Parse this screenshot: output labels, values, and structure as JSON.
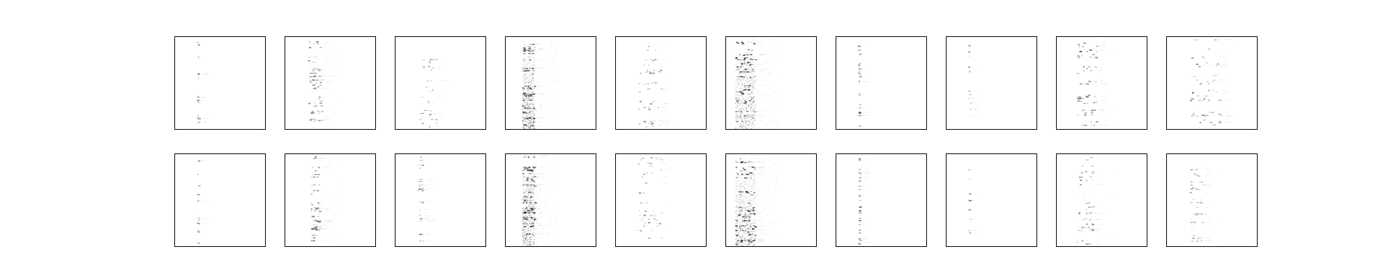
{
  "chart_data": {
    "type": "heatmap",
    "title": "",
    "layout": {
      "rows": 2,
      "cols": 10
    },
    "colormap": "gray_r",
    "axes": "off",
    "panels": [
      {
        "row": 0,
        "col": 0,
        "band": [
          0.24,
          0.26
        ],
        "rows_active": 0.45,
        "density": 0.35,
        "noise": 0.0
      },
      {
        "row": 0,
        "col": 1,
        "band": [
          0.25,
          0.4
        ],
        "rows_active": 0.85,
        "density": 0.55,
        "noise": 0.02
      },
      {
        "row": 0,
        "col": 2,
        "band": [
          0.25,
          0.45
        ],
        "rows_active": 0.55,
        "density": 0.45,
        "noise": 0.0
      },
      {
        "row": 0,
        "col": 3,
        "band": [
          0.18,
          0.32
        ],
        "rows_active": 1.0,
        "density": 0.9,
        "noise": 0.12
      },
      {
        "row": 0,
        "col": 4,
        "band": [
          0.24,
          0.5
        ],
        "rows_active": 0.65,
        "density": 0.5,
        "noise": 0.0
      },
      {
        "row": 0,
        "col": 5,
        "band": [
          0.1,
          0.32
        ],
        "rows_active": 1.0,
        "density": 0.95,
        "noise": 0.18
      },
      {
        "row": 0,
        "col": 6,
        "band": [
          0.24,
          0.26
        ],
        "rows_active": 0.8,
        "density": 0.35,
        "noise": 0.0
      },
      {
        "row": 0,
        "col": 7,
        "band": [
          0.24,
          0.26
        ],
        "rows_active": 0.3,
        "density": 0.3,
        "noise": 0.0
      },
      {
        "row": 0,
        "col": 8,
        "band": [
          0.22,
          0.45
        ],
        "rows_active": 0.8,
        "density": 0.55,
        "noise": 0.02
      },
      {
        "row": 0,
        "col": 9,
        "band": [
          0.25,
          0.6
        ],
        "rows_active": 0.85,
        "density": 0.45,
        "noise": 0.01
      },
      {
        "row": 1,
        "col": 0,
        "band": [
          0.24,
          0.26
        ],
        "rows_active": 0.4,
        "density": 0.35,
        "noise": 0.0
      },
      {
        "row": 1,
        "col": 1,
        "band": [
          0.28,
          0.38
        ],
        "rows_active": 0.8,
        "density": 0.55,
        "noise": 0.02
      },
      {
        "row": 1,
        "col": 2,
        "band": [
          0.25,
          0.3
        ],
        "rows_active": 0.55,
        "density": 0.4,
        "noise": 0.0
      },
      {
        "row": 1,
        "col": 3,
        "band": [
          0.18,
          0.32
        ],
        "rows_active": 1.0,
        "density": 0.9,
        "noise": 0.12
      },
      {
        "row": 1,
        "col": 4,
        "band": [
          0.24,
          0.5
        ],
        "rows_active": 0.6,
        "density": 0.45,
        "noise": 0.0
      },
      {
        "row": 1,
        "col": 5,
        "band": [
          0.1,
          0.32
        ],
        "rows_active": 1.0,
        "density": 0.95,
        "noise": 0.18
      },
      {
        "row": 1,
        "col": 6,
        "band": [
          0.24,
          0.26
        ],
        "rows_active": 0.85,
        "density": 0.35,
        "noise": 0.0
      },
      {
        "row": 1,
        "col": 7,
        "band": [
          0.24,
          0.26
        ],
        "rows_active": 0.3,
        "density": 0.3,
        "noise": 0.0
      },
      {
        "row": 1,
        "col": 8,
        "band": [
          0.22,
          0.4
        ],
        "rows_active": 0.75,
        "density": 0.55,
        "noise": 0.02
      },
      {
        "row": 1,
        "col": 9,
        "band": [
          0.25,
          0.4
        ],
        "rows_active": 0.7,
        "density": 0.4,
        "noise": 0.01
      }
    ]
  }
}
